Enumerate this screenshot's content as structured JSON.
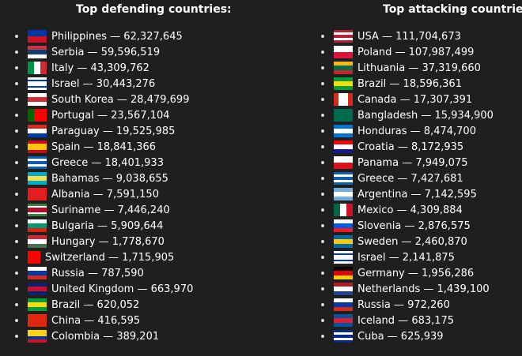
{
  "defending": {
    "title": "Top defending countries:",
    "items": [
      {
        "label": "Philippines — 62,327,645",
        "flag": "h",
        "colors": [
          "#0038a8",
          "#ce1126"
        ]
      },
      {
        "label": "Serbia — 59,596,519",
        "flag": "h",
        "colors": [
          "#c6363c",
          "#0c4076",
          "#ffffff"
        ]
      },
      {
        "label": "Italy — 43,309,762",
        "flag": "v",
        "colors": [
          "#009246",
          "#ffffff",
          "#ce2b37"
        ]
      },
      {
        "label": "Israel — 30,443,276",
        "flag": "h",
        "colors": [
          "#ffffff",
          "#0038b8",
          "#ffffff",
          "#ffffff",
          "#0038b8",
          "#ffffff"
        ]
      },
      {
        "label": "South Korea — 28,479,699",
        "flag": "h",
        "colors": [
          "#ffffff",
          "#cd2e3a",
          "#ffffff"
        ]
      },
      {
        "label": "Portugal — 23,567,104",
        "flag": "v",
        "colors": [
          "#006600",
          "#ff0000",
          "#ff0000"
        ]
      },
      {
        "label": "Paraguay — 19,525,985",
        "flag": "h",
        "colors": [
          "#d52b1e",
          "#ffffff",
          "#0038a8"
        ]
      },
      {
        "label": "Spain — 18,841,366",
        "flag": "h",
        "colors": [
          "#c60b1e",
          "#ffc400",
          "#ffc400",
          "#c60b1e"
        ]
      },
      {
        "label": "Greece — 18,401,933",
        "flag": "h",
        "colors": [
          "#0d5eaf",
          "#ffffff",
          "#0d5eaf",
          "#ffffff",
          "#0d5eaf"
        ]
      },
      {
        "label": "Bahamas — 9,038,655",
        "flag": "h",
        "colors": [
          "#00abc9",
          "#fae042",
          "#00abc9"
        ]
      },
      {
        "label": "Albania — 7,591,150",
        "flag": "h",
        "colors": [
          "#e41e20"
        ]
      },
      {
        "label": "Suriname — 7,446,240",
        "flag": "h",
        "colors": [
          "#377e3f",
          "#ffffff",
          "#b40a2d",
          "#b40a2d",
          "#ffffff",
          "#377e3f"
        ]
      },
      {
        "label": "Bulgaria — 5,909,644",
        "flag": "h",
        "colors": [
          "#ffffff",
          "#00966e",
          "#d62612"
        ]
      },
      {
        "label": "Hungary — 1,778,670",
        "flag": "h",
        "colors": [
          "#ce2939",
          "#ffffff",
          "#477050"
        ]
      },
      {
        "label": "Switzerland — 1,715,905",
        "flag": "sq",
        "colors": [
          "#ff0000"
        ]
      },
      {
        "label": "Russia — 787,590",
        "flag": "h",
        "colors": [
          "#ffffff",
          "#0039a6",
          "#d52b1e"
        ]
      },
      {
        "label": "United Kingdom — 663,970",
        "flag": "h",
        "colors": [
          "#012169",
          "#c8102e",
          "#012169"
        ]
      },
      {
        "label": "Brazil — 620,052",
        "flag": "h",
        "colors": [
          "#009c3b",
          "#ffdf00",
          "#009c3b"
        ]
      },
      {
        "label": "China — 416,595",
        "flag": "h",
        "colors": [
          "#de2910"
        ]
      },
      {
        "label": "Colombia — 389,201",
        "flag": "h",
        "colors": [
          "#fcd116",
          "#fcd116",
          "#003893",
          "#ce1126"
        ]
      }
    ]
  },
  "attacking": {
    "title": "Top attacking countries:",
    "items": [
      {
        "label": "USA — 111,704,673",
        "flag": "h",
        "colors": [
          "#b22234",
          "#ffffff",
          "#b22234",
          "#ffffff",
          "#b22234"
        ]
      },
      {
        "label": "Poland — 107,987,499",
        "flag": "h",
        "colors": [
          "#ffffff",
          "#dc143c"
        ]
      },
      {
        "label": "Lithuania — 37,319,660",
        "flag": "h",
        "colors": [
          "#fdb913",
          "#006a44",
          "#c1272d"
        ]
      },
      {
        "label": "Brazil — 18,596,361",
        "flag": "h",
        "colors": [
          "#009c3b",
          "#ffdf00",
          "#009c3b"
        ]
      },
      {
        "label": "Canada — 17,307,391",
        "flag": "v",
        "colors": [
          "#d52b1e",
          "#ffffff",
          "#ffffff",
          "#d52b1e"
        ]
      },
      {
        "label": "Bangladesh — 15,934,900",
        "flag": "h",
        "colors": [
          "#006a4e"
        ]
      },
      {
        "label": "Honduras — 8,474,700",
        "flag": "h",
        "colors": [
          "#0073cf",
          "#ffffff",
          "#0073cf"
        ]
      },
      {
        "label": "Croatia — 8,172,935",
        "flag": "h",
        "colors": [
          "#ff0000",
          "#ffffff",
          "#171796"
        ]
      },
      {
        "label": "Panama — 7,949,075",
        "flag": "h",
        "colors": [
          "#ffffff",
          "#da121a"
        ]
      },
      {
        "label": "Greece — 7,427,681",
        "flag": "h",
        "colors": [
          "#0d5eaf",
          "#ffffff",
          "#0d5eaf",
          "#ffffff",
          "#0d5eaf"
        ]
      },
      {
        "label": "Argentina — 7,142,595",
        "flag": "h",
        "colors": [
          "#74acdf",
          "#ffffff",
          "#74acdf"
        ]
      },
      {
        "label": "Mexico — 4,309,884",
        "flag": "v",
        "colors": [
          "#006847",
          "#ffffff",
          "#ce1126"
        ]
      },
      {
        "label": "Slovenia — 2,876,575",
        "flag": "h",
        "colors": [
          "#ffffff",
          "#005ce5",
          "#ed1c24"
        ]
      },
      {
        "label": "Sweden — 2,460,870",
        "flag": "h",
        "colors": [
          "#006aa7",
          "#fecc00",
          "#006aa7"
        ]
      },
      {
        "label": "Israel — 2,141,875",
        "flag": "h",
        "colors": [
          "#ffffff",
          "#0038b8",
          "#ffffff",
          "#ffffff",
          "#0038b8",
          "#ffffff"
        ]
      },
      {
        "label": "Germany — 1,956,286",
        "flag": "h",
        "colors": [
          "#000000",
          "#dd0000",
          "#ffce00"
        ]
      },
      {
        "label": "Netherlands — 1,439,100",
        "flag": "h",
        "colors": [
          "#ae1c28",
          "#ffffff",
          "#21468b"
        ]
      },
      {
        "label": "Russia — 972,260",
        "flag": "h",
        "colors": [
          "#ffffff",
          "#0039a6",
          "#d52b1e"
        ]
      },
      {
        "label": "Iceland — 683,175",
        "flag": "h",
        "colors": [
          "#02529c",
          "#dc1e35",
          "#02529c"
        ]
      },
      {
        "label": "Cuba — 625,939",
        "flag": "h",
        "colors": [
          "#002a8f",
          "#ffffff",
          "#002a8f",
          "#ffffff",
          "#002a8f"
        ]
      }
    ]
  }
}
